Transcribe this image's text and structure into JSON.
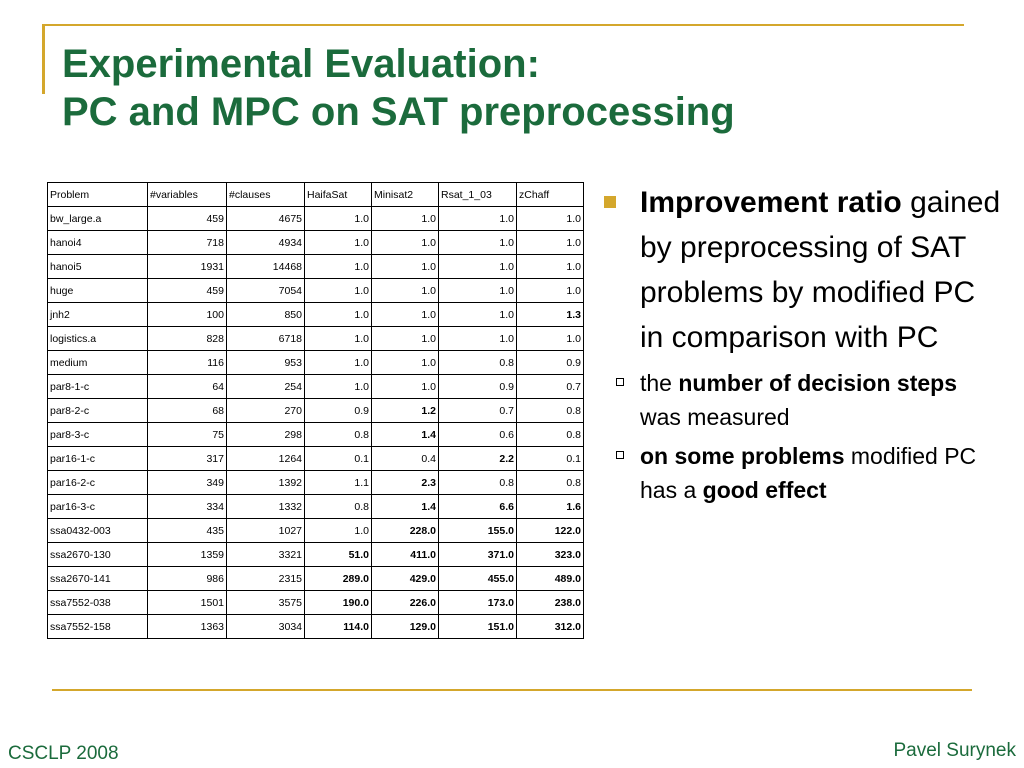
{
  "slide": {
    "title_line1": "Experimental Evaluation:",
    "title_line2": "PC and MPC on SAT preprocessing"
  },
  "table": {
    "columns": [
      "Problem",
      "#variables",
      "#clauses",
      "HaifaSat",
      "Minisat2",
      "Rsat_1_03",
      "zChaff"
    ],
    "rows": [
      {
        "cells": [
          "bw_large.a",
          "459",
          "4675",
          "1.0",
          "1.0",
          "1.0",
          "1.0"
        ],
        "bold": []
      },
      {
        "cells": [
          "hanoi4",
          "718",
          "4934",
          "1.0",
          "1.0",
          "1.0",
          "1.0"
        ],
        "bold": []
      },
      {
        "cells": [
          "hanoi5",
          "1931",
          "14468",
          "1.0",
          "1.0",
          "1.0",
          "1.0"
        ],
        "bold": []
      },
      {
        "cells": [
          "huge",
          "459",
          "7054",
          "1.0",
          "1.0",
          "1.0",
          "1.0"
        ],
        "bold": []
      },
      {
        "cells": [
          "jnh2",
          "100",
          "850",
          "1.0",
          "1.0",
          "1.0",
          "1.3"
        ],
        "bold": [
          6
        ]
      },
      {
        "cells": [
          "logistics.a",
          "828",
          "6718",
          "1.0",
          "1.0",
          "1.0",
          "1.0"
        ],
        "bold": []
      },
      {
        "cells": [
          "medium",
          "116",
          "953",
          "1.0",
          "1.0",
          "0.8",
          "0.9"
        ],
        "bold": []
      },
      {
        "cells": [
          "par8-1-c",
          "64",
          "254",
          "1.0",
          "1.0",
          "0.9",
          "0.7"
        ],
        "bold": []
      },
      {
        "cells": [
          "par8-2-c",
          "68",
          "270",
          "0.9",
          "1.2",
          "0.7",
          "0.8"
        ],
        "bold": [
          4
        ]
      },
      {
        "cells": [
          "par8-3-c",
          "75",
          "298",
          "0.8",
          "1.4",
          "0.6",
          "0.8"
        ],
        "bold": [
          4
        ]
      },
      {
        "cells": [
          "par16-1-c",
          "317",
          "1264",
          "0.1",
          "0.4",
          "2.2",
          "0.1"
        ],
        "bold": [
          5
        ]
      },
      {
        "cells": [
          "par16-2-c",
          "349",
          "1392",
          "1.1",
          "2.3",
          "0.8",
          "0.8"
        ],
        "bold": [
          4
        ]
      },
      {
        "cells": [
          "par16-3-c",
          "334",
          "1332",
          "0.8",
          "1.4",
          "6.6",
          "1.6"
        ],
        "bold": [
          4,
          5,
          6
        ]
      },
      {
        "cells": [
          "ssa0432-003",
          "435",
          "1027",
          "1.0",
          "228.0",
          "155.0",
          "122.0"
        ],
        "bold": [
          4,
          5,
          6
        ]
      },
      {
        "cells": [
          "ssa2670-130",
          "1359",
          "3321",
          "51.0",
          "411.0",
          "371.0",
          "323.0"
        ],
        "bold": [
          3,
          4,
          5,
          6
        ]
      },
      {
        "cells": [
          "ssa2670-141",
          "986",
          "2315",
          "289.0",
          "429.0",
          "455.0",
          "489.0"
        ],
        "bold": [
          3,
          4,
          5,
          6
        ]
      },
      {
        "cells": [
          "ssa7552-038",
          "1501",
          "3575",
          "190.0",
          "226.0",
          "173.0",
          "238.0"
        ],
        "bold": [
          3,
          4,
          5,
          6
        ]
      },
      {
        "cells": [
          "ssa7552-158",
          "1363",
          "3034",
          "114.0",
          "129.0",
          "151.0",
          "312.0"
        ],
        "bold": [
          3,
          4,
          5,
          6
        ]
      }
    ]
  },
  "bullets": {
    "main_bold": "Improvement ratio",
    "main_text": "gained by preprocessing of SAT problems by modified PC in comparison with PC",
    "sub1": {
      "pre": "the ",
      "bold": "number of decision steps",
      "post": " was measured"
    },
    "sub2": {
      "bold": "on some problems",
      "mid": " modified PC has a ",
      "bold2": "good effect"
    }
  },
  "footer": {
    "left": "CSCLP 2008",
    "right": "Pavel Surynek"
  },
  "colors": {
    "title_green": "#1b6b3c",
    "accent_gold": "#d4a72c"
  }
}
